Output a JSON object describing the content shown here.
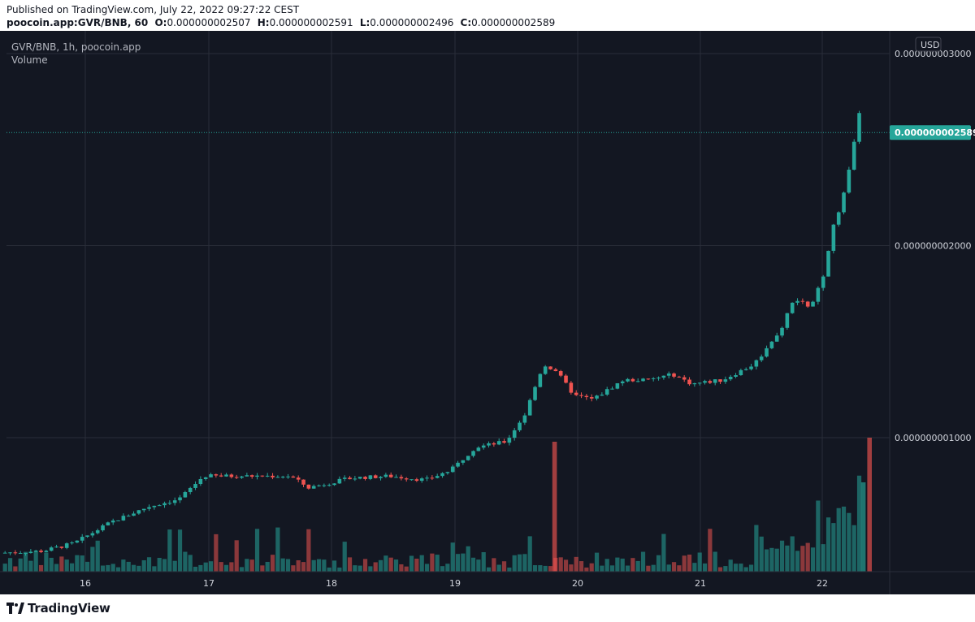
{
  "header": {
    "published": "Published on TradingView.com, July 22, 2022 09:27:22 CEST",
    "symbol": "poocoin.app:GVR/BNB, 60",
    "o_label": "O:",
    "o_value": "0.000000002507",
    "h_label": "H:",
    "h_value": "0.000000002591",
    "l_label": "L:",
    "l_value": "0.000000002496",
    "c_label": "C:",
    "c_value": "0.000000002589"
  },
  "legend": {
    "title": "GVR/BNB, 1h, poocoin.app",
    "volume": "Volume"
  },
  "currency_badge": "USD",
  "last_price_label": "0.000000002589",
  "footer_logo": "TradingView",
  "colors": {
    "background": "#131722",
    "up": "#26a69a",
    "down": "#ef5350",
    "vol_up": "#26a69a",
    "vol_down": "#ef5350",
    "grid": "#2a2e39",
    "text": "#b2b5be"
  },
  "chart_data": {
    "type": "candlestick",
    "title": "GVR/BNB, 1h, poocoin.app",
    "x_tick_labels": [
      "16",
      "17",
      "18",
      "19",
      "20",
      "21",
      "22"
    ],
    "y_tick_labels": [
      "0.000000003000",
      "0.000000002000",
      "0.000000001000"
    ],
    "y_ticks": [
      3e-09,
      2e-09,
      1e-09
    ],
    "ylim": [
      3e-10,
      3.1e-09
    ],
    "last_price": 2.589e-09,
    "grid": true,
    "daily_closes": [
      {
        "day": "16",
        "value": 4.5e-10
      },
      {
        "day": "17",
        "value": 8e-10
      },
      {
        "day": "18",
        "value": 7.7e-10
      },
      {
        "day": "19",
        "value": 8.5e-10
      },
      {
        "day": "19.8",
        "value": 1.36e-09
      },
      {
        "day": "20",
        "value": 1.22e-09
      },
      {
        "day": "21",
        "value": 1.3e-09
      },
      {
        "day": "21.7",
        "value": 1.7e-09
      },
      {
        "day": "22",
        "value": 1.95e-09
      },
      {
        "day": "22.3",
        "value": 2.589e-09
      }
    ],
    "volume_spikes": [
      {
        "time": "19 ~19:00",
        "direction": "down",
        "relative": 0.98
      },
      {
        "time": "22 ~07:00",
        "direction": "down",
        "relative": 1.0
      },
      {
        "time": "22 ~06:00",
        "direction": "up",
        "relative": 0.68
      }
    ]
  }
}
